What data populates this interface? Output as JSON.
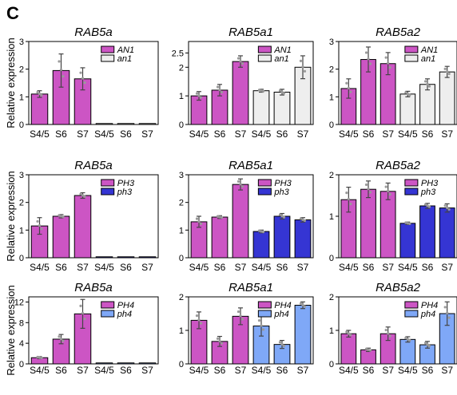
{
  "figure": {
    "panel_letter": "C",
    "row_ylabel": "Relative expression"
  },
  "colors": {
    "magenta": "#CC55C4",
    "white_bar": "#EEEEEE",
    "blue_dark": "#3535D3",
    "blue_light": "#7FA8F7",
    "error": "#444444",
    "dots": "#9A9A9A"
  },
  "chart_data": [
    {
      "type": "bar",
      "title": "RAB5a",
      "row": 0,
      "col": 0,
      "categories": [
        "S4/5",
        "S6",
        "S7",
        "S4/5",
        "S6",
        "S7"
      ],
      "values": [
        1.1,
        1.95,
        1.65,
        0.0,
        0.0,
        0.0
      ],
      "errors": [
        0.12,
        0.6,
        0.4,
        0,
        0,
        0
      ],
      "groups": [
        0,
        0,
        0,
        1,
        1,
        1
      ],
      "ylim": [
        0,
        3
      ],
      "yticks": [
        0,
        1,
        2,
        3
      ],
      "ytick_labels": [
        "0",
        "1",
        "2",
        "3"
      ],
      "legend": [
        "AN1",
        "an1"
      ],
      "legend_colors": [
        "magenta",
        "white_bar"
      ]
    },
    {
      "type": "bar",
      "title": "RAB5a1",
      "row": 0,
      "col": 1,
      "categories": [
        "S4/5",
        "S6",
        "S7",
        "S4/5",
        "S6",
        "S7"
      ],
      "values": [
        1.0,
        1.2,
        2.2,
        1.18,
        1.13,
        2.0
      ],
      "errors": [
        0.15,
        0.2,
        0.2,
        0.05,
        0.1,
        0.4
      ],
      "groups": [
        0,
        0,
        0,
        1,
        1,
        1
      ],
      "ylim": [
        0,
        2.9
      ],
      "yticks": [
        0,
        1,
        2,
        2.5
      ],
      "ytick_labels": [
        "0",
        "1",
        "2",
        "2.5"
      ],
      "legend": [
        "AN1",
        "an1"
      ],
      "legend_colors": [
        "magenta",
        "white_bar"
      ]
    },
    {
      "type": "bar",
      "title": "RAB5a2",
      "row": 0,
      "col": 2,
      "categories": [
        "S4/5",
        "S6",
        "S7",
        "S4/5",
        "S6",
        "S7"
      ],
      "values": [
        1.3,
        2.35,
        2.2,
        1.1,
        1.45,
        1.9
      ],
      "errors": [
        0.35,
        0.45,
        0.4,
        0.1,
        0.2,
        0.2
      ],
      "groups": [
        0,
        0,
        0,
        1,
        1,
        1
      ],
      "ylim": [
        0,
        3
      ],
      "yticks": [
        0,
        1,
        2,
        3
      ],
      "ytick_labels": [
        "0",
        "1",
        "2",
        "3"
      ],
      "legend": [
        "AN1",
        "an1"
      ],
      "legend_colors": [
        "magenta",
        "white_bar"
      ]
    },
    {
      "type": "bar",
      "title": "RAB5a",
      "row": 1,
      "col": 0,
      "categories": [
        "S4/5",
        "S6",
        "S7",
        "S4/5",
        "S6",
        "S7"
      ],
      "values": [
        1.15,
        1.5,
        2.25,
        0.0,
        0.0,
        0.0
      ],
      "errors": [
        0.3,
        0.06,
        0.1,
        0,
        0,
        0
      ],
      "groups": [
        0,
        0,
        0,
        1,
        1,
        1
      ],
      "ylim": [
        0,
        3
      ],
      "yticks": [
        0,
        1,
        2,
        3
      ],
      "ytick_labels": [
        "0",
        "1",
        "2",
        "3"
      ],
      "legend": [
        "PH3",
        "ph3"
      ],
      "legend_colors": [
        "magenta",
        "blue_dark"
      ]
    },
    {
      "type": "bar",
      "title": "RAB5a1",
      "row": 1,
      "col": 1,
      "categories": [
        "S4/5",
        "S6",
        "S7",
        "S4/5",
        "S6",
        "S7"
      ],
      "values": [
        1.3,
        1.47,
        2.65,
        0.95,
        1.5,
        1.37
      ],
      "errors": [
        0.2,
        0.05,
        0.2,
        0.05,
        0.1,
        0.08
      ],
      "groups": [
        0,
        0,
        0,
        1,
        1,
        1
      ],
      "ylim": [
        0,
        3
      ],
      "yticks": [
        0,
        1,
        2,
        3
      ],
      "ytick_labels": [
        "0",
        "1",
        "2",
        "3"
      ],
      "legend": [
        "PH3",
        "ph3"
      ],
      "legend_colors": [
        "magenta",
        "blue_dark"
      ]
    },
    {
      "type": "bar",
      "title": "RAB5a2",
      "row": 1,
      "col": 2,
      "categories": [
        "S4/5",
        "S6",
        "S7",
        "S4/5",
        "S6",
        "S7"
      ],
      "values": [
        1.4,
        1.65,
        1.6,
        0.83,
        1.25,
        1.2
      ],
      "errors": [
        0.3,
        0.2,
        0.2,
        0.03,
        0.06,
        0.1
      ],
      "groups": [
        0,
        0,
        0,
        1,
        1,
        1
      ],
      "ylim": [
        0,
        2
      ],
      "yticks": [
        0,
        1,
        2
      ],
      "ytick_labels": [
        "0",
        "1",
        "2"
      ],
      "legend": [
        "PH3",
        "ph3"
      ],
      "legend_colors": [
        "magenta",
        "blue_dark"
      ]
    },
    {
      "type": "bar",
      "title": "RAB5a",
      "row": 2,
      "col": 0,
      "categories": [
        "S4/5",
        "S6",
        "S7",
        "S4/5",
        "S6",
        "S7"
      ],
      "values": [
        1.2,
        4.8,
        9.7,
        0.0,
        0.0,
        0.0
      ],
      "errors": [
        0.2,
        0.9,
        2.8,
        0,
        0,
        0
      ],
      "groups": [
        0,
        0,
        0,
        1,
        1,
        1
      ],
      "ylim": [
        0,
        13
      ],
      "yticks": [
        0,
        4,
        8,
        12
      ],
      "ytick_labels": [
        "0",
        "4",
        "8",
        "12"
      ],
      "legend": [
        "PH4",
        "ph4"
      ],
      "legend_colors": [
        "magenta",
        "blue_light"
      ]
    },
    {
      "type": "bar",
      "title": "RAB5a1",
      "row": 2,
      "col": 1,
      "categories": [
        "S4/5",
        "S6",
        "S7",
        "S4/5",
        "S6",
        "S7"
      ],
      "values": [
        1.3,
        0.67,
        1.42,
        1.13,
        0.58,
        1.75
      ],
      "errors": [
        0.25,
        0.15,
        0.25,
        0.3,
        0.12,
        0.1
      ],
      "groups": [
        0,
        0,
        0,
        1,
        1,
        1
      ],
      "ylim": [
        0,
        2
      ],
      "yticks": [
        0,
        1,
        2
      ],
      "ytick_labels": [
        "0",
        "1",
        "2"
      ],
      "legend": [
        "PH4",
        "ph4"
      ],
      "legend_colors": [
        "magenta",
        "blue_light"
      ]
    },
    {
      "type": "bar",
      "title": "RAB5a2",
      "row": 2,
      "col": 2,
      "categories": [
        "S4/5",
        "S6",
        "S7",
        "S4/5",
        "S6",
        "S7"
      ],
      "values": [
        0.9,
        0.42,
        0.9,
        0.73,
        0.57,
        1.5
      ],
      "errors": [
        0.1,
        0.05,
        0.2,
        0.08,
        0.1,
        0.35
      ],
      "groups": [
        0,
        0,
        0,
        1,
        1,
        1
      ],
      "ylim": [
        0,
        2
      ],
      "yticks": [
        0,
        1,
        2
      ],
      "ytick_labels": [
        "0",
        "1",
        "2"
      ],
      "legend": [
        "PH4",
        "ph4"
      ],
      "legend_colors": [
        "magenta",
        "blue_light"
      ]
    }
  ]
}
